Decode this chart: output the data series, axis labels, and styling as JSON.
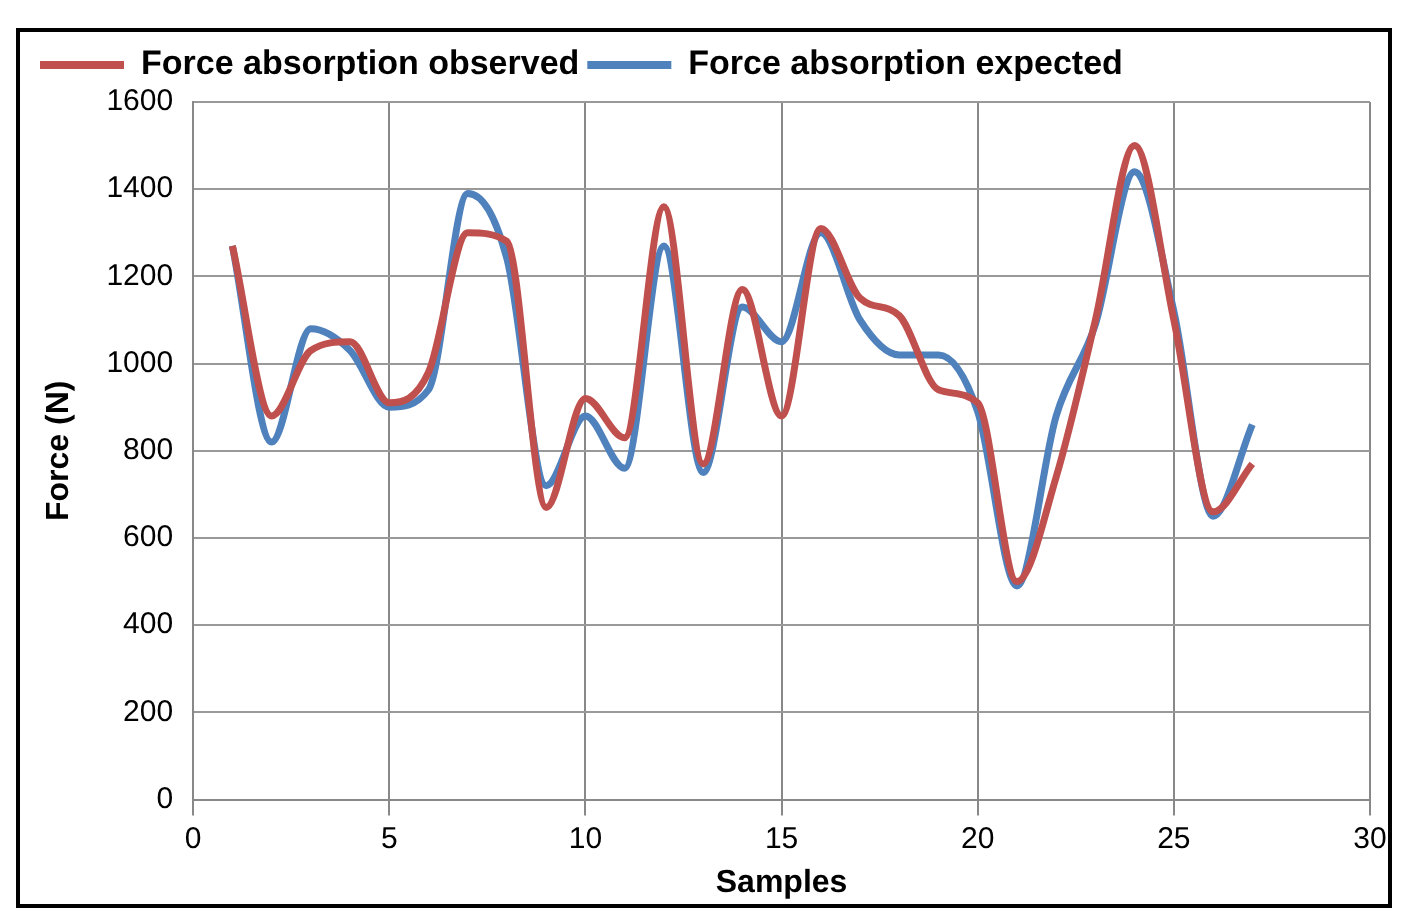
{
  "chart_data": {
    "type": "line",
    "xlabel": "Samples",
    "ylabel": "Force (N)",
    "x": [
      1,
      2,
      3,
      4,
      5,
      6,
      7,
      8,
      9,
      10,
      11,
      12,
      13,
      14,
      15,
      16,
      17,
      18,
      19,
      20,
      21,
      22,
      23,
      24,
      25,
      26,
      27
    ],
    "series": [
      {
        "name": "Force absorption observed",
        "color": "#c0504d",
        "values": [
          1270,
          880,
          1030,
          1050,
          910,
          980,
          1300,
          1280,
          670,
          920,
          830,
          1360,
          770,
          1170,
          880,
          1310,
          1150,
          1110,
          940,
          910,
          500,
          740,
          1100,
          1500,
          1100,
          660,
          770
        ]
      },
      {
        "name": "Force absorption expected",
        "color": "#4f81bd",
        "values": [
          1270,
          820,
          1080,
          1030,
          900,
          940,
          1390,
          1240,
          720,
          880,
          760,
          1270,
          750,
          1130,
          1050,
          1300,
          1100,
          1020,
          1020,
          890,
          490,
          880,
          1090,
          1440,
          1120,
          650,
          860
        ]
      }
    ],
    "xlim": [
      0,
      30
    ],
    "xticks": [
      0,
      5,
      10,
      15,
      20,
      25,
      30
    ],
    "ylim": [
      0,
      1600
    ],
    "yticks": [
      0,
      200,
      400,
      600,
      800,
      1000,
      1200,
      1400,
      1600
    ],
    "grid": true,
    "legend": "top left",
    "marker": "none",
    "line_style": "solid"
  }
}
